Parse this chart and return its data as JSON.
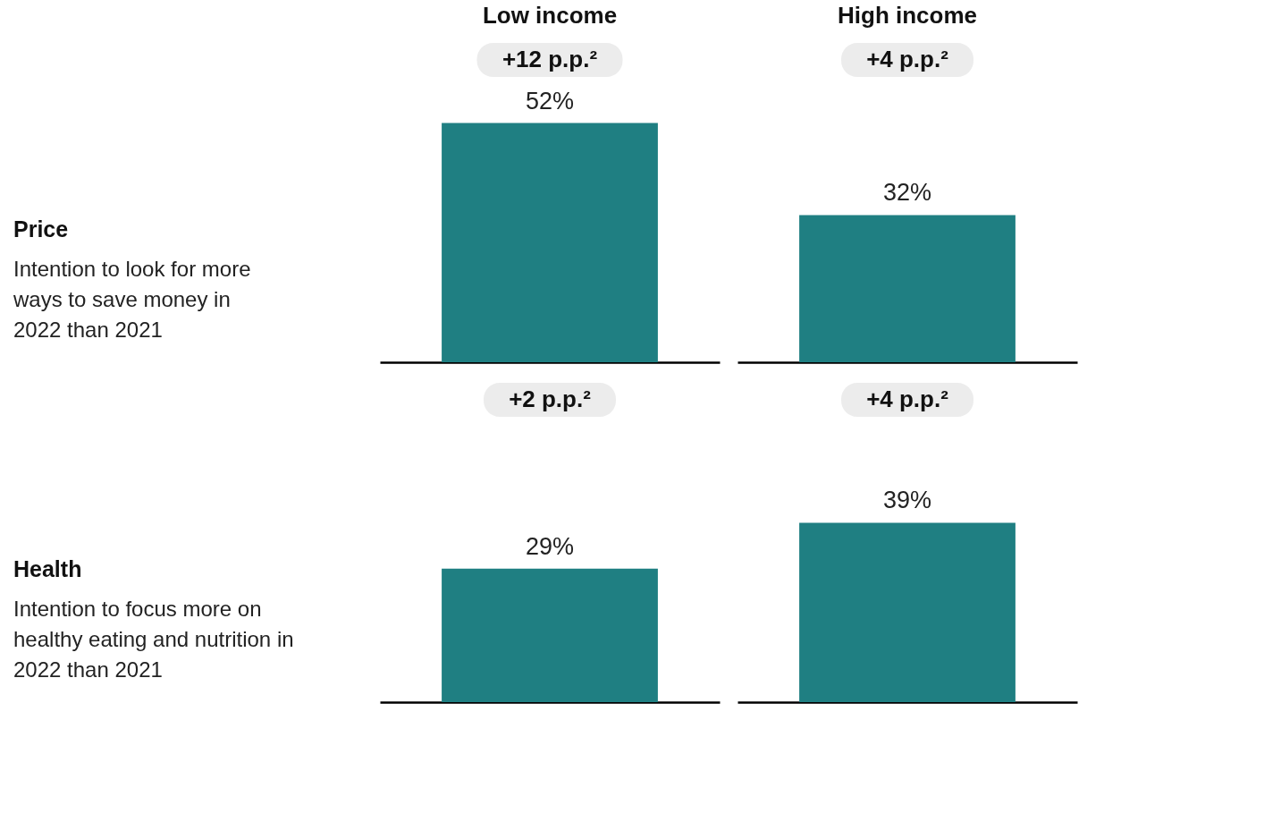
{
  "chart_data": [
    {
      "type": "other",
      "title": "Price",
      "subtitle": "Intention to look for more\nways to save money in\n2022 than 2021"
    },
    {
      "type": "bar",
      "title": "Low income",
      "categories": [
        null
      ],
      "values": [
        52
      ],
      "value_labels": [
        "52%"
      ],
      "color": "#1f7f82",
      "ylim": [
        0,
        70
      ],
      "tick_labels": false,
      "annotations": [
        "+12 p.p.²"
      ]
    },
    {
      "type": "bar",
      "title": "High income",
      "categories": [
        null
      ],
      "values": [
        32
      ],
      "value_labels": [
        "32%"
      ],
      "color": "#1f7f82",
      "ylim": [
        0,
        70
      ],
      "tick_labels": false,
      "annotations": [
        "+4 p.p.²"
      ]
    },
    {
      "type": "other",
      "title": "Health",
      "subtitle": "Intention to focus more on\nhealthy eating and nutrition in\n2022 than 2021"
    },
    {
      "type": "bar",
      "categories": [
        null
      ],
      "values": [
        29
      ],
      "value_labels": [
        "29%"
      ],
      "color": "#1f7f82",
      "ylim": [
        0,
        70
      ],
      "tick_labels": false,
      "annotations": [
        "+2 p.p.²"
      ]
    },
    {
      "type": "bar",
      "categories": [
        null
      ],
      "values": [
        39
      ],
      "value_labels": [
        "39%"
      ],
      "color": "#1f7f82",
      "ylim": [
        0,
        70
      ],
      "tick_labels": false,
      "annotations": [
        "+4 p.p.²"
      ]
    }
  ]
}
